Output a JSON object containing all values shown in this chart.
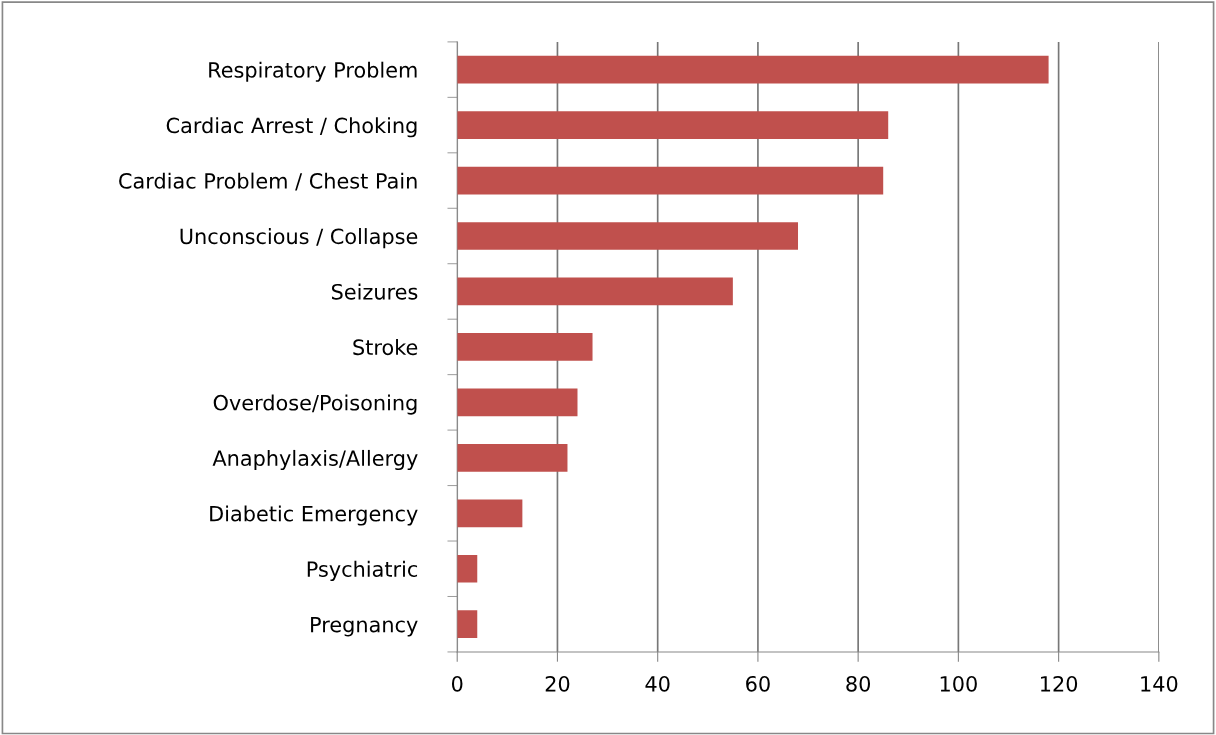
{
  "chart_data": {
    "type": "bar",
    "orientation": "horizontal",
    "categories": [
      "Respiratory Problem",
      "Cardiac Arrest / Choking",
      "Cardiac Problem / Chest Pain",
      "Unconscious / Collapse",
      "Seizures",
      "Stroke",
      "Overdose/Poisoning",
      "Anaphylaxis/Allergy",
      "Diabetic Emergency",
      "Psychiatric",
      "Pregnancy"
    ],
    "values": [
      118,
      86,
      85,
      68,
      55,
      27,
      24,
      22,
      13,
      4,
      4
    ],
    "color": "#c0504d",
    "xlim": [
      0,
      140
    ],
    "xticks": [
      0,
      20,
      40,
      60,
      80,
      100,
      120,
      140
    ],
    "grid": "x"
  }
}
